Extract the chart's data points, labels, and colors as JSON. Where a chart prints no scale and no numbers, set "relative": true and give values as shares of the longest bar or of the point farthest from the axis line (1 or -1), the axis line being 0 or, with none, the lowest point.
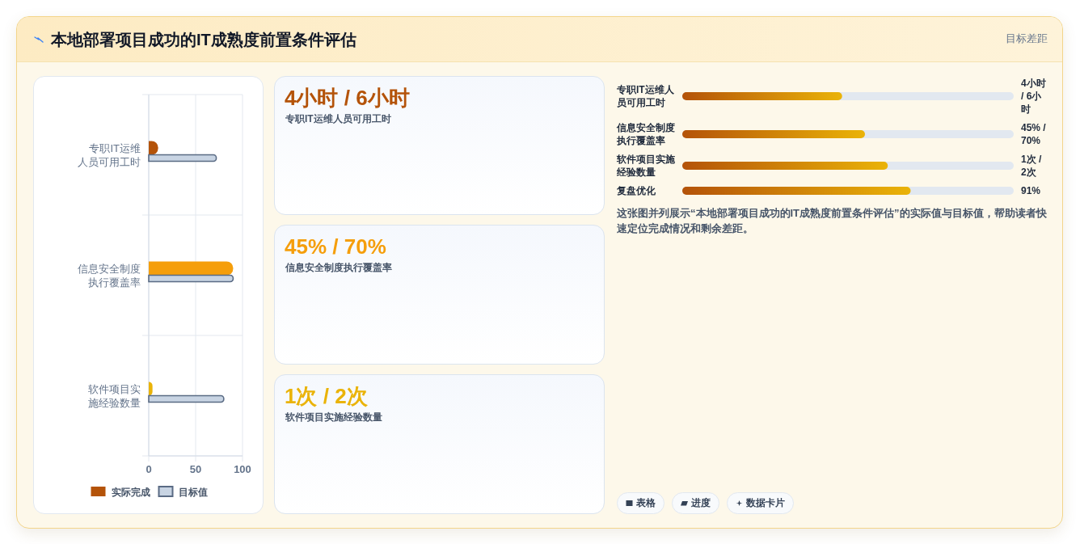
{
  "chart_data": [
    {
      "type": "other",
      "title": "本地部署项目成功的IT成熟度前置条件评估",
      "subtitle": "目标差距"
    },
    {
      "type": "bar",
      "orientation": "horizontal",
      "categories": [
        "专职IT运维人员可用工时",
        "信息安全制度执行覆盖率",
        "软件项目实施经验数量"
      ],
      "series": [
        {
          "name": "实际完成",
          "color": "#b45309",
          "colors": [
            "#b45309",
            "#f59e0b",
            "#eab308"
          ],
          "values": [
            10,
            90,
            4
          ]
        },
        {
          "name": "目标值",
          "color": "#c8d4e3",
          "values": [
            72,
            90,
            80
          ]
        }
      ],
      "xlim": [
        0,
        100
      ],
      "xticks": [
        0,
        50,
        100
      ],
      "grid": true,
      "legend": "bottom"
    },
    {
      "type": "other",
      "title": "4小时 / 6小时",
      "subtitle": "专职IT运维人员可用工时",
      "color": "#b45309"
    },
    {
      "type": "other",
      "title": "45% / 70%",
      "subtitle": "信息安全制度执行覆盖率",
      "color": "#f59e0b"
    },
    {
      "type": "other",
      "title": "1次 / 2次",
      "subtitle": "软件项目实施经验数量",
      "color": "#eab308"
    },
    {
      "type": "bar",
      "orientation": "horizontal",
      "relative": true,
      "categories": [
        "专职IT运维人员可用工时",
        "信息安全制度执行覆盖率",
        "软件项目实施经验数量",
        "复盘优化"
      ],
      "values": [
        0.7,
        0.8,
        0.9,
        1
      ],
      "color": "#eab308",
      "annotations": [
        "4小时 / 6小时",
        "45% / 70%",
        "1次 / 2次",
        "91%",
        "这张图并列展示“本地部署项目成功的IT成熟度前置条件评估”的实际值与目标值，帮助读者快速定位完成情况和剩余差距。"
      ]
    },
    {
      "type": "other",
      "annotations": [
        "表格",
        "进度",
        "数据卡片"
      ]
    }
  ]
}
